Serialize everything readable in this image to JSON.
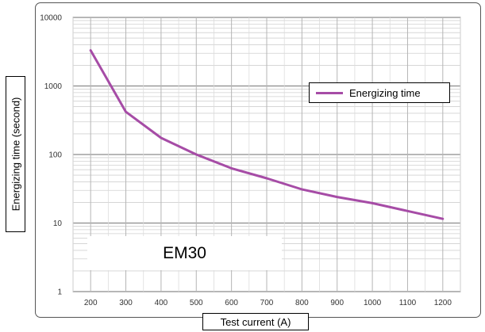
{
  "chart_data": {
    "type": "line",
    "xlabel": "Test current (A)",
    "ylabel": "Energizing time (second)",
    "x_ticks": [
      "200",
      "300",
      "400",
      "500",
      "600",
      "700",
      "800",
      "900",
      "1000",
      "1100",
      "1200"
    ],
    "y_ticks": [
      "1",
      "10",
      "100",
      "1000",
      "10000"
    ],
    "xlim": [
      150,
      1250
    ],
    "ylim": [
      1,
      10000
    ],
    "y_scale": "log",
    "grid": true,
    "legend": "right",
    "annotation": "EM30",
    "series": [
      {
        "name": "Energizing time",
        "color": "#a64ca6",
        "x": [
          200,
          300,
          400,
          500,
          600,
          700,
          800,
          900,
          1000,
          1100,
          1200
        ],
        "y": [
          3300,
          420,
          175,
          100,
          63,
          45,
          31,
          24,
          19.5,
          15,
          11.5
        ]
      }
    ]
  }
}
